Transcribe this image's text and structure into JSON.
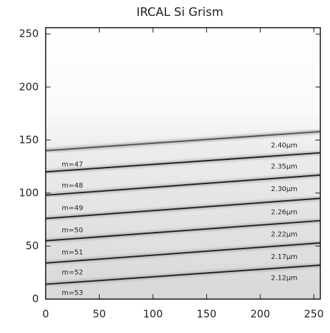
{
  "chart_data": {
    "type": "line",
    "title": "IRCAL Si Grism",
    "x": [
      0,
      256
    ],
    "series": [
      {
        "values": [
          140,
          158
        ],
        "color": "#555555"
      },
      {
        "values": [
          120,
          138
        ],
        "color": "#222222"
      },
      {
        "values": [
          98,
          117
        ],
        "color": "#222222"
      },
      {
        "values": [
          76,
          95
        ],
        "color": "#222222"
      },
      {
        "values": [
          55,
          74
        ],
        "color": "#222222"
      },
      {
        "values": [
          34,
          53
        ],
        "color": "#222222"
      },
      {
        "values": [
          14,
          32
        ],
        "color": "#222222"
      }
    ],
    "annotations": [
      {
        "text": "m=47",
        "x": 15,
        "y": 127
      },
      {
        "text": "m=48",
        "x": 15,
        "y": 107
      },
      {
        "text": "m=49",
        "x": 15,
        "y": 86
      },
      {
        "text": "m=50",
        "x": 15,
        "y": 65
      },
      {
        "text": "m=51",
        "x": 15,
        "y": 44
      },
      {
        "text": "m=52",
        "x": 15,
        "y": 25
      },
      {
        "text": "m=53",
        "x": 15,
        "y": 6
      },
      {
        "text": "2.40μm",
        "x": 210,
        "y": 145
      },
      {
        "text": "2.35μm",
        "x": 210,
        "y": 125
      },
      {
        "text": "2.30μm",
        "x": 210,
        "y": 104
      },
      {
        "text": "2.26μm",
        "x": 210,
        "y": 82
      },
      {
        "text": "2.22μm",
        "x": 210,
        "y": 61
      },
      {
        "text": "2.17μm",
        "x": 210,
        "y": 40
      },
      {
        "text": "2.12μm",
        "x": 210,
        "y": 20
      }
    ],
    "xlim": [
      0,
      256
    ],
    "ylim": [
      0,
      256
    ],
    "xticks": [
      0,
      50,
      100,
      150,
      200,
      250
    ],
    "yticks": [
      0,
      50,
      100,
      150,
      200,
      250
    ]
  }
}
